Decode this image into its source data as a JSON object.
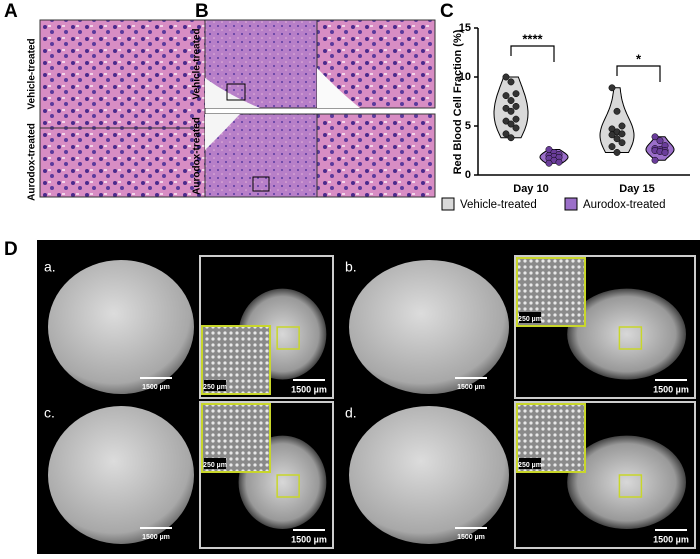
{
  "panel_a": {
    "label": "A",
    "rows": [
      "Vehicle-treated",
      "Aurodox-treated"
    ]
  },
  "panel_b": {
    "label": "B",
    "rows": [
      "Vehicle-treated",
      "Aurodox-treated"
    ]
  },
  "panel_d": {
    "label": "D",
    "subpanels": [
      {
        "label": "a.",
        "left_scale": "1500 µm",
        "right_scale": "1500 µm",
        "inset_scale": "250 µm"
      },
      {
        "label": "b.",
        "left_scale": "1500 µm",
        "right_scale": "1500 µm",
        "inset_scale": "250 µm"
      },
      {
        "label": "c.",
        "left_scale": "1500 µm",
        "right_scale": "1500 µm",
        "inset_scale": "250 µm"
      },
      {
        "label": "d.",
        "left_scale": "1500 µm",
        "right_scale": "1500 µm",
        "inset_scale": "250 µm"
      }
    ]
  },
  "chart_data": {
    "type": "violin",
    "label": "C",
    "y_label": "Red Blood Cell Fraction (%)",
    "categories": [
      "Day 10",
      "Day 15"
    ],
    "series": [
      {
        "name": "Vehicle-treated",
        "color": "#d9d9d9",
        "values": [
          [
            10,
            9.5,
            8.3,
            8.1,
            7.6,
            7,
            6.8,
            6.5,
            5.7,
            5.5,
            5.2,
            4.8,
            4.2,
            3.8
          ],
          [
            8.9,
            6.5,
            5,
            4.7,
            4.4,
            4.2,
            4.1,
            3.7,
            3.3,
            2.9,
            2.3
          ]
        ]
      },
      {
        "name": "Aurodox-treated",
        "color": "#9b6fc9",
        "values": [
          [
            2.6,
            2.3,
            2.1,
            2,
            1.9,
            1.8,
            1.7,
            1.5,
            1.3,
            1.2
          ],
          [
            3.9,
            3.5,
            3,
            2.7,
            2.6,
            2.5,
            2.5,
            2.4,
            2.3,
            1.5
          ]
        ]
      }
    ],
    "annotations": [
      "****",
      "*"
    ],
    "ylim": [
      0,
      15
    ],
    "yticks": [
      0,
      5,
      10,
      15
    ]
  }
}
